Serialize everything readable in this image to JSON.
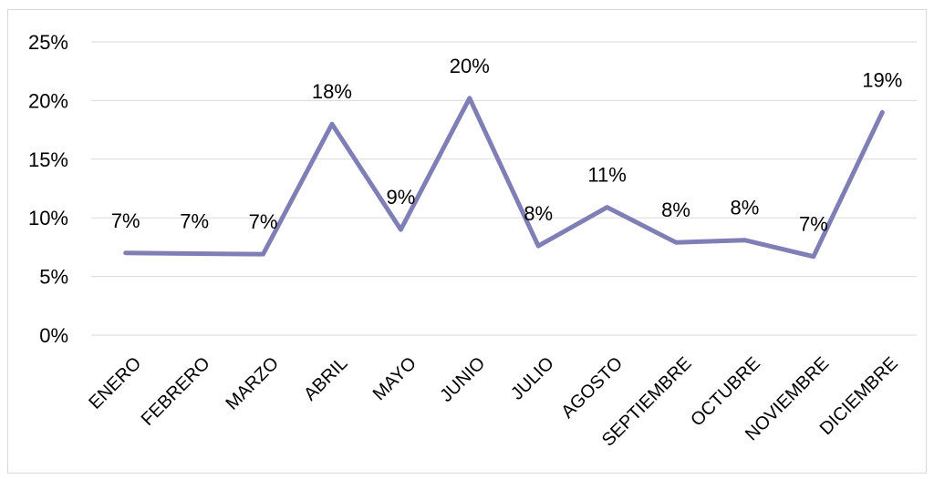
{
  "chart_data": {
    "type": "line",
    "categories": [
      "ENERO",
      "FEBRERO",
      "MARZO",
      "ABRIL",
      "MAYO",
      "JUNIO",
      "JULIO",
      "AGOSTO",
      "SEPTIEMBRE",
      "OCTUBRE",
      "NOVIEMBRE",
      "DICIEMBRE"
    ],
    "values": [
      7.0,
      6.95,
      6.9,
      18.0,
      9.0,
      20.2,
      7.6,
      10.9,
      7.9,
      8.1,
      6.7,
      19.0
    ],
    "data_labels": [
      "7%",
      "7%",
      "7%",
      "18%",
      "9%",
      "20%",
      "8%",
      "11%",
      "8%",
      "8%",
      "7%",
      "19%"
    ],
    "y_ticks": [
      "0%",
      "5%",
      "10%",
      "15%",
      "20%",
      "25%"
    ],
    "ylim": [
      0,
      25
    ],
    "grid": true,
    "legend": "none",
    "line_color": "#7f7fb5"
  }
}
